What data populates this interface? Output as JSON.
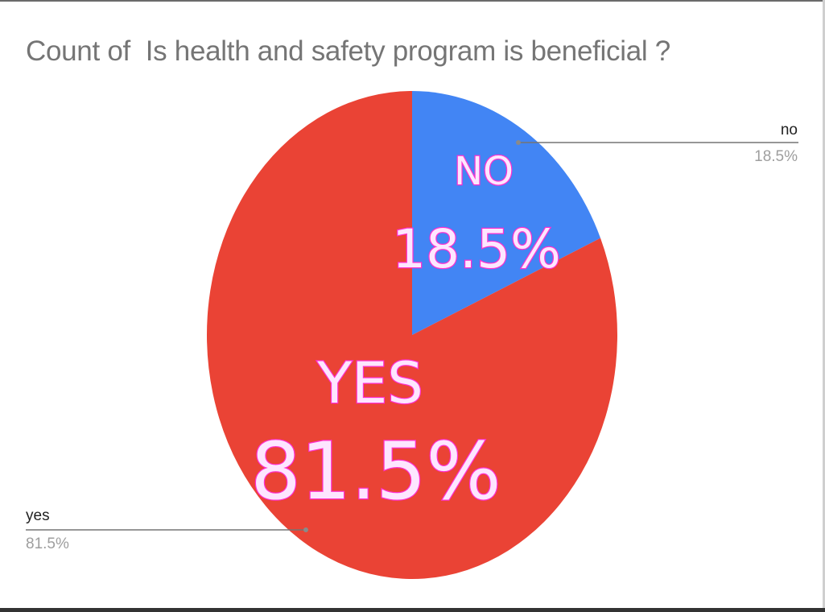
{
  "chart_data": {
    "type": "pie",
    "title": "Count of  Is health and safety program is beneficial ?",
    "slices": [
      {
        "key": "no",
        "name": "no",
        "value": 18.5,
        "pct_label": "18.5%",
        "color": "#4285f4",
        "overlay_name": "NO",
        "overlay_pct": "18.5%"
      },
      {
        "key": "yes",
        "name": "yes",
        "value": 81.5,
        "pct_label": "81.5%",
        "color": "#ea4335",
        "overlay_name": "YES",
        "overlay_pct": "81.5%"
      }
    ],
    "start_angle": "12 o'clock",
    "direction": "clockwise",
    "legend": "callout labels"
  }
}
